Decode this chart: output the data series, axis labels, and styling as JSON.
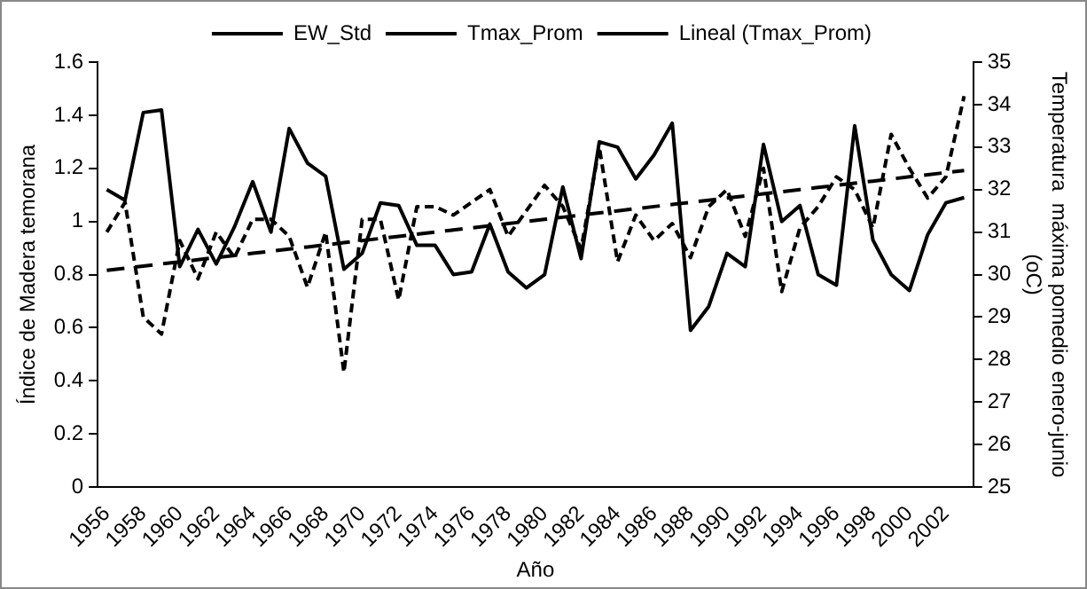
{
  "chart_data": {
    "type": "line",
    "xlabel": "Año",
    "ylabel": "Índice de Madera temorana",
    "y2label": "Temperatura  máxima pomedio enero-junio\n(oC)",
    "categories": [
      "1956",
      null,
      "1958",
      null,
      "1960",
      null,
      "1962",
      null,
      "1964",
      null,
      "1966",
      null,
      "1968",
      null,
      "1970",
      null,
      "1972",
      null,
      "1974",
      null,
      "1976",
      null,
      "1978",
      null,
      "1980",
      null,
      "1982",
      null,
      "1984",
      null,
      "1986",
      null,
      "1988",
      null,
      "1990",
      null,
      "1992",
      null,
      "1994",
      null,
      "1996",
      null,
      "1998",
      null,
      "2000",
      null,
      "2002",
      null
    ],
    "series": [
      {
        "name": "EW_Std",
        "color": "#000000",
        "line_style": "solid",
        "values": [
          1.12,
          1.08,
          1.41,
          1.42,
          0.83,
          0.97,
          0.84,
          0.98,
          1.15,
          0.96,
          1.35,
          1.22,
          1.17,
          0.82,
          0.88,
          1.07,
          1.06,
          0.91,
          0.91,
          0.8,
          0.81,
          0.99,
          0.81,
          0.75,
          0.8,
          1.13,
          0.86,
          1.3,
          1.28,
          1.16,
          1.25,
          1.37,
          0.59,
          0.68,
          0.88,
          0.83,
          1.29,
          1.0,
          1.06,
          0.8,
          0.76,
          1.36,
          0.93,
          0.8,
          0.74,
          0.95,
          1.07,
          1.09
        ]
      },
      {
        "name": "Tmax_Prom",
        "color": "#000000",
        "line_style": "dashed",
        "axis": "y2",
        "values": [
          31.0,
          31.7,
          29.0,
          28.6,
          30.8,
          29.9,
          31.0,
          30.4,
          31.3,
          31.3,
          30.9,
          29.7,
          31.0,
          27.7,
          31.3,
          31.3,
          29.4,
          31.6,
          31.6,
          31.4,
          31.7,
          32.0,
          30.9,
          31.5,
          32.1,
          31.6,
          30.6,
          33.0,
          30.3,
          31.4,
          30.8,
          31.2,
          30.4,
          31.6,
          32.0,
          30.9,
          32.5,
          29.6,
          31.1,
          31.6,
          32.3,
          32.0,
          31.1,
          33.3,
          32.5,
          31.8,
          32.3,
          34.2
        ]
      },
      {
        "name": "Lineal (Tmax_Prom)",
        "color": "#000000",
        "line_style": "dashed",
        "axis": "y2",
        "values": [
          30.1,
          30.15,
          30.2,
          30.25,
          30.3,
          30.35,
          30.4,
          30.45,
          30.5,
          30.55,
          30.6,
          30.65,
          30.7,
          30.75,
          30.8,
          30.85,
          30.9,
          30.95,
          31.0,
          31.05,
          31.1,
          31.15,
          31.2,
          31.25,
          31.3,
          31.35,
          31.4,
          31.45,
          31.5,
          31.55,
          31.6,
          31.65,
          31.7,
          31.75,
          31.8,
          31.85,
          31.9,
          31.95,
          32.0,
          32.05,
          32.1,
          32.15,
          32.2,
          32.25,
          32.3,
          32.35,
          32.4,
          32.45
        ]
      }
    ],
    "ylim": [
      0,
      1.6
    ],
    "yticks": [
      0,
      0.2,
      0.4,
      0.6,
      0.8,
      1,
      1.2,
      1.4,
      1.6
    ],
    "y2lim": [
      25,
      35
    ],
    "y2ticks": [
      25,
      26,
      27,
      28,
      29,
      30,
      31,
      32,
      33,
      34,
      35
    ],
    "legend": "top",
    "marker": "none",
    "grid": false
  }
}
